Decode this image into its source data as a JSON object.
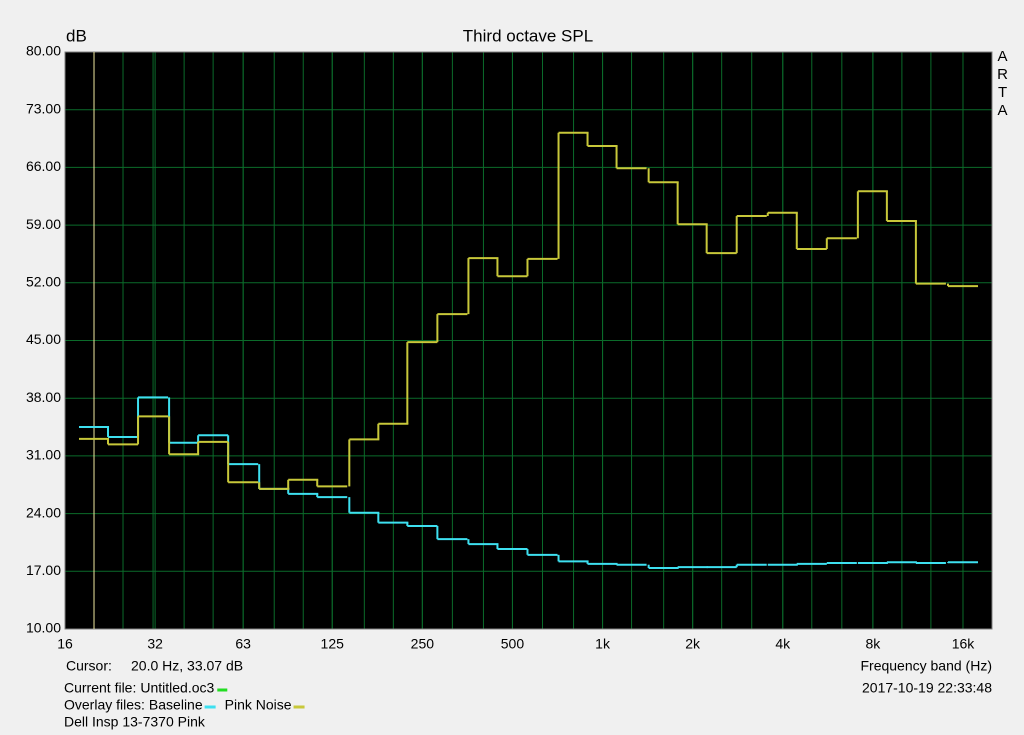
{
  "chart_data": {
    "type": "step",
    "title": "Third octave SPL",
    "y_unit": "dB",
    "x_label": "Frequency band (Hz)",
    "watermark": "ARTA",
    "timestamp": "2017-10-19  22:33:48",
    "cursor": {
      "label": "Cursor:",
      "text": "20.0 Hz, 33.07 dB",
      "x": 20,
      "color": "#f0e8a0"
    },
    "current_file": {
      "label": "Current file:",
      "name": "Untitled.oc3",
      "color": "#22dd22"
    },
    "overlay_label": "Overlay files:",
    "footer": "Dell Insp 13-7370 Pink",
    "log_x": true,
    "grid": true,
    "grid_color": "#0b6b2a",
    "x": [
      20,
      25,
      31.5,
      40,
      50,
      63,
      80,
      100,
      125,
      160,
      200,
      250,
      315,
      400,
      500,
      630,
      800,
      1000,
      1250,
      1600,
      2000,
      2500,
      3150,
      4000,
      5000,
      6300,
      8000,
      10000,
      12500,
      16000
    ],
    "series": [
      {
        "name": "Baseline",
        "color": "#3ee0f0",
        "values": [
          34.5,
          33.3,
          38.1,
          32.6,
          33.5,
          30.0,
          27.0,
          26.4,
          26.0,
          24.1,
          22.9,
          22.5,
          20.9,
          20.3,
          19.7,
          19.0,
          18.2,
          17.9,
          17.8,
          17.4,
          17.5,
          17.5,
          17.8,
          17.8,
          17.9,
          18.0,
          18.0,
          18.1,
          18.0,
          18.1
        ]
      },
      {
        "name": "Pink Noise",
        "color": "#c8c83a",
        "values": [
          33.07,
          32.4,
          35.8,
          31.2,
          32.7,
          27.8,
          27.0,
          28.1,
          27.3,
          33.0,
          34.9,
          44.8,
          48.2,
          55.0,
          52.8,
          54.9,
          70.2,
          68.6,
          65.9,
          64.2,
          59.1,
          55.6,
          60.1,
          60.5,
          56.1,
          57.4,
          63.1,
          59.5,
          51.9,
          51.6
        ]
      }
    ],
    "xlim": [
      16,
      20000
    ],
    "xticks": [
      16,
      32,
      63,
      125,
      250,
      500,
      {
        "value": 1000,
        "label": "1k"
      },
      {
        "value": 2000,
        "label": "2k"
      },
      {
        "value": 4000,
        "label": "4k"
      },
      {
        "value": 8000,
        "label": "8k"
      },
      {
        "value": 16000,
        "label": "16k"
      }
    ],
    "ylim": [
      10,
      80
    ],
    "yticks": [
      {
        "value": 10,
        "label": "10.00"
      },
      {
        "value": 17,
        "label": "17.00"
      },
      {
        "value": 24,
        "label": "24.00"
      },
      {
        "value": 31,
        "label": "31.00"
      },
      {
        "value": 38,
        "label": "38.00"
      },
      {
        "value": 45,
        "label": "45.00"
      },
      {
        "value": 52,
        "label": "52.00"
      },
      {
        "value": 59,
        "label": "59.00"
      },
      {
        "value": 66,
        "label": "66.00"
      },
      {
        "value": 73,
        "label": "73.00"
      },
      {
        "value": 80,
        "label": "80.00"
      }
    ]
  }
}
